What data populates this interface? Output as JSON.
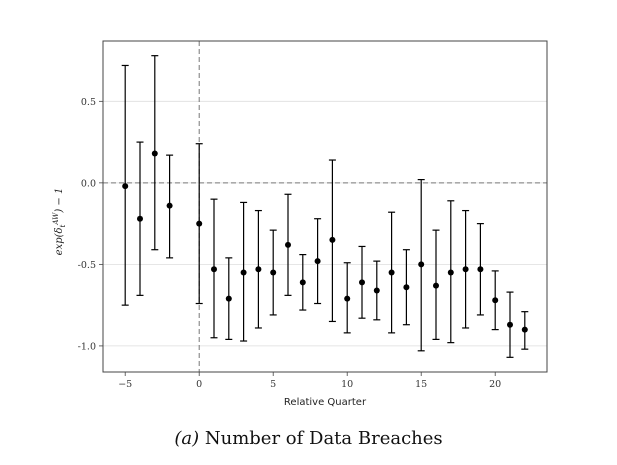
{
  "chart_data": {
    "type": "scatter",
    "subtype": "errorbar",
    "xlabel": "Relative Quarter",
    "ylabel": "exp(δ_t^{AW}) − 1",
    "xlim": [
      -6.5,
      23.5
    ],
    "ylim": [
      -1.16,
      0.87
    ],
    "xticks": [
      -5,
      0,
      5,
      10,
      15,
      20
    ],
    "yticks": [
      0.5,
      0.0,
      -0.5,
      -1.0
    ],
    "xtick_labels": [
      "−5",
      "0",
      "5",
      "10",
      "15",
      "20"
    ],
    "ytick_labels": [
      "0.5",
      "0.0",
      "-0.5",
      "-1.0"
    ],
    "hline": 0,
    "vline": 0,
    "grid": "horizontal",
    "points": [
      {
        "x": -5,
        "y": -0.02,
        "lo": -0.75,
        "hi": 0.72
      },
      {
        "x": -4,
        "y": -0.22,
        "lo": -0.69,
        "hi": 0.25
      },
      {
        "x": -3,
        "y": 0.18,
        "lo": -0.41,
        "hi": 0.78
      },
      {
        "x": -2,
        "y": -0.14,
        "lo": -0.46,
        "hi": 0.17
      },
      {
        "x": 0,
        "y": -0.25,
        "lo": -0.74,
        "hi": 0.24
      },
      {
        "x": 1,
        "y": -0.53,
        "lo": -0.95,
        "hi": -0.1
      },
      {
        "x": 2,
        "y": -0.71,
        "lo": -0.96,
        "hi": -0.46
      },
      {
        "x": 3,
        "y": -0.55,
        "lo": -0.97,
        "hi": -0.12
      },
      {
        "x": 4,
        "y": -0.53,
        "lo": -0.89,
        "hi": -0.17
      },
      {
        "x": 5,
        "y": -0.55,
        "lo": -0.81,
        "hi": -0.29
      },
      {
        "x": 6,
        "y": -0.38,
        "lo": -0.69,
        "hi": -0.07
      },
      {
        "x": 7,
        "y": -0.61,
        "lo": -0.78,
        "hi": -0.44
      },
      {
        "x": 8,
        "y": -0.48,
        "lo": -0.74,
        "hi": -0.22
      },
      {
        "x": 9,
        "y": -0.35,
        "lo": -0.85,
        "hi": 0.14
      },
      {
        "x": 10,
        "y": -0.71,
        "lo": -0.92,
        "hi": -0.49
      },
      {
        "x": 11,
        "y": -0.61,
        "lo": -0.83,
        "hi": -0.39
      },
      {
        "x": 12,
        "y": -0.66,
        "lo": -0.84,
        "hi": -0.48
      },
      {
        "x": 13,
        "y": -0.55,
        "lo": -0.92,
        "hi": -0.18
      },
      {
        "x": 14,
        "y": -0.64,
        "lo": -0.87,
        "hi": -0.41
      },
      {
        "x": 15,
        "y": -0.5,
        "lo": -1.03,
        "hi": 0.02
      },
      {
        "x": 16,
        "y": -0.63,
        "lo": -0.96,
        "hi": -0.29
      },
      {
        "x": 17,
        "y": -0.55,
        "lo": -0.98,
        "hi": -0.11
      },
      {
        "x": 18,
        "y": -0.53,
        "lo": -0.89,
        "hi": -0.17
      },
      {
        "x": 19,
        "y": -0.53,
        "lo": -0.81,
        "hi": -0.25
      },
      {
        "x": 20,
        "y": -0.72,
        "lo": -0.9,
        "hi": -0.54
      },
      {
        "x": 21,
        "y": -0.87,
        "lo": -1.07,
        "hi": -0.67
      },
      {
        "x": 22,
        "y": -0.9,
        "lo": -1.02,
        "hi": -0.79
      }
    ]
  },
  "caption": {
    "prefix": "(a)",
    "text": "Number of Data Breaches"
  }
}
